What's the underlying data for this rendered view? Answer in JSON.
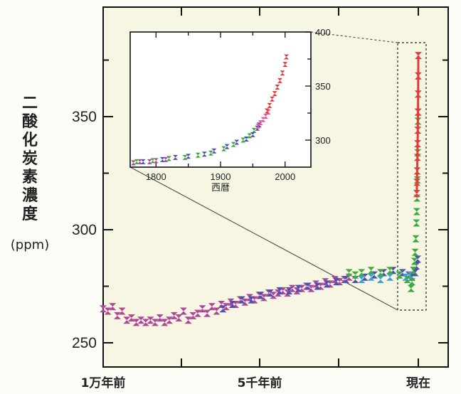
{
  "chart_data": [
    {
      "type": "scatter",
      "title": "",
      "xlabel": "",
      "ylabel": "二酸化炭素濃度",
      "ylabel_unit": "(ppm)",
      "ylim": [
        240,
        400
      ],
      "x_tick_labels": [
        "1万年前",
        "5千年前",
        "現在"
      ],
      "y_ticks": [
        250,
        300,
        350
      ],
      "grid": false,
      "background": "#f6f6e2",
      "series": [
        {
          "color": "#b0469a",
          "points": [
            [
              -10000,
              265
            ],
            [
              -9850,
              264
            ],
            [
              -9700,
              266
            ],
            [
              -9550,
              262
            ],
            [
              -9400,
              264
            ],
            [
              -9250,
              260
            ],
            [
              -9100,
              261
            ],
            [
              -8950,
              259
            ],
            [
              -8800,
              260
            ],
            [
              -8650,
              259
            ],
            [
              -8500,
              260
            ],
            [
              -8350,
              259
            ],
            [
              -8200,
              261
            ],
            [
              -8050,
              259
            ],
            [
              -7900,
              260
            ],
            [
              -7750,
              262
            ],
            [
              -7600,
              261
            ],
            [
              -7450,
              264
            ],
            [
              -7300,
              260
            ],
            [
              -7150,
              262
            ],
            [
              -7000,
              263
            ],
            [
              -6850,
              265
            ],
            [
              -6700,
              263
            ],
            [
              -6550,
              266
            ],
            [
              -6400,
              264
            ],
            [
              -6250,
              267
            ],
            [
              -6100,
              266
            ],
            [
              -5950,
              268
            ],
            [
              -5800,
              267
            ],
            [
              -5650,
              269
            ],
            [
              -5500,
              268
            ],
            [
              -5350,
              270
            ],
            [
              -5200,
              269
            ],
            [
              -5050,
              271
            ],
            [
              -4900,
              270
            ],
            [
              -4750,
              272
            ],
            [
              -4600,
              271
            ],
            [
              -4450,
              272
            ],
            [
              -4300,
              273
            ],
            [
              -4150,
              272
            ],
            [
              -4000,
              274
            ],
            [
              -3850,
              273
            ],
            [
              -3700,
              274
            ],
            [
              -3550,
              275
            ],
            [
              -3400,
              274
            ],
            [
              -3250,
              276
            ],
            [
              -3100,
              275
            ],
            [
              -2950,
              277
            ],
            [
              -2800,
              276
            ],
            [
              -2650,
              278
            ],
            [
              -2500,
              277
            ],
            [
              -2350,
              278
            ],
            [
              -2200,
              279
            ]
          ]
        },
        {
          "color": "#4b4fb0",
          "points": [
            [
              -6200,
              265
            ],
            [
              -5900,
              267
            ],
            [
              -5600,
              269
            ],
            [
              -5300,
              269
            ],
            [
              -5000,
              271
            ],
            [
              -4700,
              272
            ],
            [
              -4400,
              273
            ],
            [
              -4100,
              273
            ],
            [
              -3800,
              274
            ],
            [
              -3500,
              275
            ],
            [
              -3200,
              275
            ],
            [
              -2900,
              276
            ],
            [
              -2600,
              277
            ],
            [
              -2300,
              278
            ],
            [
              -2000,
              278
            ],
            [
              -1700,
              279
            ],
            [
              -1400,
              280
            ],
            [
              -1100,
              281
            ],
            [
              -800,
              282
            ],
            [
              -500,
              281
            ],
            [
              -300,
              280
            ],
            [
              -200,
              279
            ],
            [
              -150,
              282
            ],
            [
              -100,
              281
            ],
            [
              -60,
              284
            ],
            [
              -20,
              287
            ]
          ]
        },
        {
          "color": "#3fa0d8",
          "points": [
            [
              -1800,
              278
            ],
            [
              -1500,
              279
            ],
            [
              -1200,
              278
            ],
            [
              -900,
              279
            ],
            [
              -600,
              280
            ],
            [
              -400,
              279
            ],
            [
              -250,
              280
            ]
          ]
        },
        {
          "color": "#3daa3d",
          "points": [
            [
              -2200,
              281
            ],
            [
              -2000,
              280
            ],
            [
              -1800,
              281
            ],
            [
              -1500,
              282
            ],
            [
              -1200,
              281
            ],
            [
              -900,
              282
            ],
            [
              -600,
              280
            ],
            [
              -350,
              278
            ],
            [
              -230,
              274
            ],
            [
              -200,
              277
            ],
            [
              -150,
              282
            ],
            [
              -120,
              286
            ],
            [
              -100,
              290
            ],
            [
              -80,
              296
            ],
            [
              -60,
              303
            ],
            [
              -50,
              308
            ],
            [
              -40,
              314
            ],
            [
              -30,
              322
            ],
            [
              -20,
              334
            ],
            [
              -10,
              348
            ],
            [
              -5,
              352
            ]
          ]
        },
        {
          "color": "#e23b3b",
          "points": [
            [
              -50,
              316
            ],
            [
              -42,
              321
            ],
            [
              -35,
              326
            ],
            [
              -28,
              332
            ],
            [
              -22,
              338
            ],
            [
              -16,
              344
            ],
            [
              -10,
              352
            ],
            [
              -6,
              360
            ],
            [
              -3,
              368
            ],
            [
              0,
              377
            ]
          ]
        }
      ]
    },
    {
      "type": "scatter",
      "title": "",
      "xlabel": "西暦",
      "ylabel": "",
      "xlim": [
        1760,
        2040
      ],
      "ylim": [
        275,
        400
      ],
      "x_ticks": [
        1800,
        1900,
        2000
      ],
      "y_ticks": [
        300,
        350,
        400
      ],
      "series": [
        {
          "color": "#b0469a",
          "points": [
            [
              1765,
              279
            ],
            [
              1775,
              280
            ],
            [
              1790,
              280
            ],
            [
              1800,
              281
            ],
            [
              1815,
              282
            ]
          ]
        },
        {
          "color": "#3daa3d",
          "points": [
            [
              1770,
              280
            ],
            [
              1795,
              281
            ],
            [
              1820,
              283
            ],
            [
              1845,
              284
            ],
            [
              1865,
              286
            ],
            [
              1885,
              288
            ],
            [
              1905,
              292
            ],
            [
              1920,
              296
            ],
            [
              1935,
              300
            ],
            [
              1945,
              304
            ],
            [
              1952,
              309
            ]
          ]
        },
        {
          "color": "#4b4fb0",
          "points": [
            [
              1780,
              280
            ],
            [
              1810,
              282
            ],
            [
              1830,
              284
            ],
            [
              1850,
              285
            ],
            [
              1875,
              287
            ],
            [
              1890,
              290
            ],
            [
              1910,
              294
            ],
            [
              1925,
              298
            ],
            [
              1940,
              301
            ],
            [
              1950,
              305
            ],
            [
              1957,
              311
            ],
            [
              1960,
              314
            ]
          ]
        },
        {
          "color": "#e8599a",
          "points": [
            [
              1958,
              313
            ],
            [
              1962,
              316
            ],
            [
              1966,
              319
            ],
            [
              1970,
              322
            ],
            [
              1974,
              326
            ]
          ]
        },
        {
          "color": "#e23b3b",
          "points": [
            [
              1972,
              327
            ],
            [
              1976,
              332
            ],
            [
              1980,
              338
            ],
            [
              1984,
              343
            ],
            [
              1988,
              349
            ],
            [
              1992,
              355
            ],
            [
              1996,
              362
            ],
            [
              2000,
              370
            ],
            [
              2002,
              377
            ]
          ]
        }
      ]
    }
  ]
}
